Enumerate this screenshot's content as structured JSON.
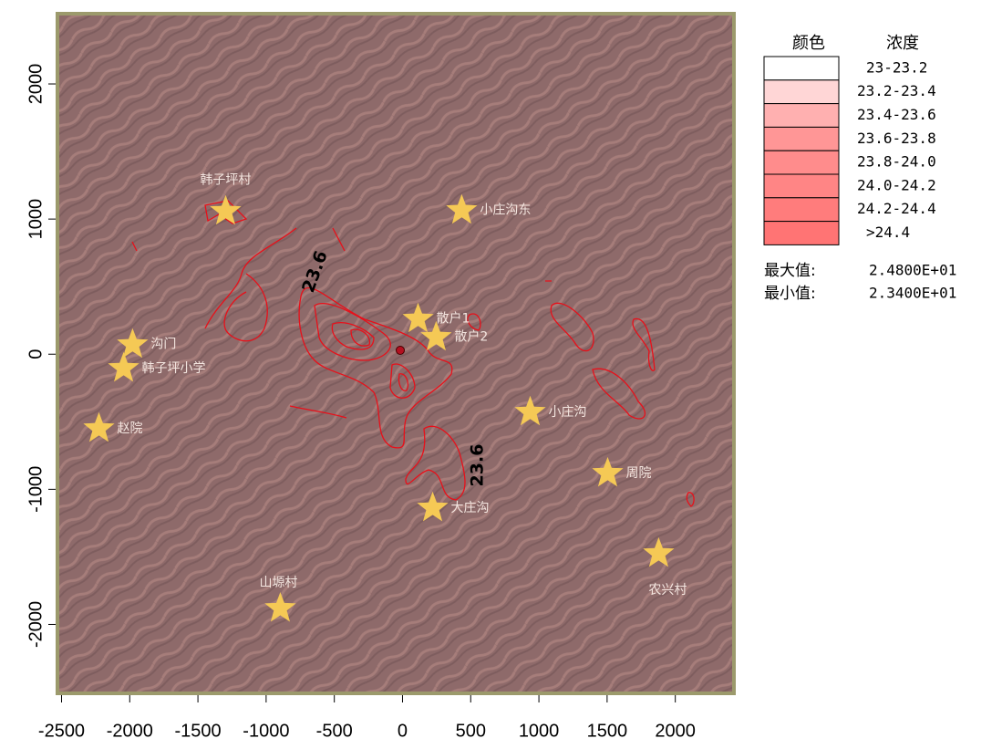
{
  "chart_data": {
    "type": "map",
    "xlim": [
      -2530,
      2430
    ],
    "ylim": [
      -2510,
      2520
    ],
    "xticks": [
      -2500,
      -2000,
      -1500,
      -1000,
      -500,
      0,
      500,
      1000,
      1500,
      2000
    ],
    "yticks": [
      -2000,
      -1000,
      0,
      1000,
      2000
    ],
    "places": {
      "color": "#f5c955",
      "names": [
        "韩子坪村",
        "小庄沟东",
        "沟门",
        "韩子坪小学",
        "赵院",
        "散户1",
        "散户2",
        "小庄沟",
        "周院",
        "大庄沟",
        "农兴村",
        "山塬村"
      ],
      "x": [
        -1297,
        434,
        -1979,
        -2045,
        -2226,
        114,
        247,
        936,
        1504,
        221,
        1878,
        -896
      ],
      "y": [
        1057,
        1064,
        71,
        -105,
        -551,
        260,
        125,
        -429,
        -882,
        -1138,
        -1476,
        -1882
      ]
    },
    "contour_labels": [
      "23.6",
      "23.6"
    ],
    "legend": {
      "headers": [
        "颜色",
        "浓度"
      ],
      "items": [
        {
          "color": "#ffffff",
          "label": "23-23.2"
        },
        {
          "color": "#ffd6d6",
          "label": "23.2-23.4"
        },
        {
          "color": "#ffb0b0",
          "label": "23.4-23.6"
        },
        {
          "color": "#ff9696",
          "label": "23.6-23.8"
        },
        {
          "color": "#ff8c8c",
          "label": "23.8-24.0"
        },
        {
          "color": "#ff8585",
          "label": "24.0-24.2"
        },
        {
          "color": "#ff7c7c",
          "label": "24.2-24.4"
        },
        {
          "color": "#ff7474",
          "label": ">24.4"
        }
      ]
    },
    "stats": [
      {
        "label": "最大值:",
        "value": 24.8,
        "text": "2.4800E+01"
      },
      {
        "label": "最小值:",
        "value": 23.4,
        "text": "2.3400E+01"
      }
    ]
  }
}
